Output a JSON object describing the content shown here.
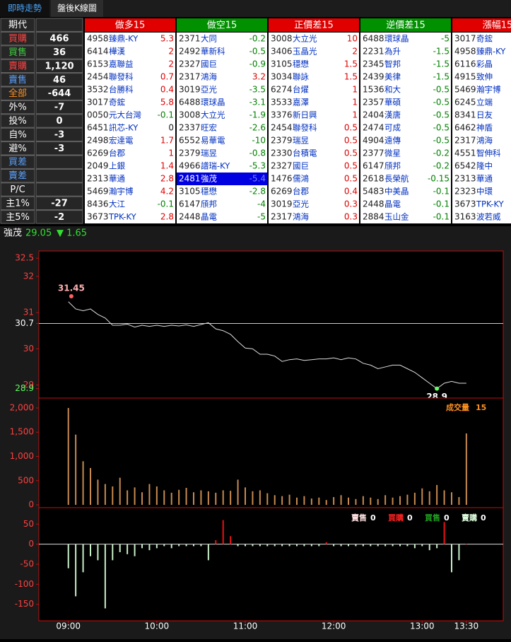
{
  "tabs": [
    "即時走勢",
    "盤後K線圖"
  ],
  "left_panel": [
    {
      "label": "期代",
      "value": "",
      "color": "#ffffff"
    },
    {
      "label": "買購",
      "value": "466",
      "color": "#ff4040"
    },
    {
      "label": "買售",
      "value": "36",
      "color": "#40d040"
    },
    {
      "label": "賣購",
      "value": "1,120",
      "color": "#ff4040"
    },
    {
      "label": "賣售",
      "value": "46",
      "color": "#5aa0ff"
    },
    {
      "label": "全部",
      "value": "-644",
      "color": "#ff9020"
    },
    {
      "label": "外%",
      "value": "-7",
      "color": "#ffffff"
    },
    {
      "label": "投%",
      "value": "0",
      "color": "#ffffff"
    },
    {
      "label": "自%",
      "value": "-3",
      "color": "#ffffff"
    },
    {
      "label": "避%",
      "value": "-3",
      "color": "#ffffff"
    },
    {
      "label": "買差",
      "value": "",
      "color": "#5aa0ff"
    },
    {
      "label": "賣差",
      "value": "",
      "color": "#5aa0ff"
    },
    {
      "label": "P/C",
      "value": "",
      "color": "#ffffff"
    },
    {
      "label": "主1%",
      "value": "-27",
      "color": "#ffffff"
    },
    {
      "label": "主5%",
      "value": "-2",
      "color": "#ffffff"
    }
  ],
  "lists": [
    {
      "title": "做多15",
      "color": "#e00000",
      "rows": [
        [
          "4958",
          "臻鼎-KY",
          "5.3"
        ],
        [
          "6414",
          "樺漢",
          "2"
        ],
        [
          "6153",
          "嘉聯益",
          "2"
        ],
        [
          "2454",
          "聯發科",
          "0.7"
        ],
        [
          "3532",
          "台勝科",
          "0.4"
        ],
        [
          "3017",
          "奇鋐",
          "5.8"
        ],
        [
          "0050",
          "元大台灣",
          "-0.1"
        ],
        [
          "6451",
          "訊芯-KY",
          "0"
        ],
        [
          "2498",
          "宏達電",
          "1.7"
        ],
        [
          "6269",
          "台郡",
          "1"
        ],
        [
          "2049",
          "上銀",
          "1.4"
        ],
        [
          "2313",
          "華通",
          "2.8"
        ],
        [
          "5469",
          "瀚宇博",
          "4.2"
        ],
        [
          "8436",
          "大江",
          "-0.1"
        ],
        [
          "3673",
          "TPK-KY",
          "2.8"
        ]
      ]
    },
    {
      "title": "做空15",
      "color": "#009000",
      "selected_row": 11,
      "rows": [
        [
          "2371",
          "大同",
          "-0.2"
        ],
        [
          "2492",
          "華新科",
          "-0.5"
        ],
        [
          "2327",
          "國巨",
          "-0.9"
        ],
        [
          "2317",
          "鴻海",
          "3.2"
        ],
        [
          "3019",
          "亞光",
          "-3.5"
        ],
        [
          "6488",
          "環球晶",
          "-3.1"
        ],
        [
          "3008",
          "大立光",
          "-1.9"
        ],
        [
          "2337",
          "旺宏",
          "-2.6"
        ],
        [
          "6552",
          "易華電",
          "-10"
        ],
        [
          "2379",
          "瑞昱",
          "-0.8"
        ],
        [
          "4966",
          "譜瑞-KY",
          "-5.3"
        ],
        [
          "2481",
          "強茂",
          "-5.4"
        ],
        [
          "3105",
          "穩懋",
          "-2.8"
        ],
        [
          "6147",
          "頎邦",
          "-4"
        ],
        [
          "2448",
          "晶電",
          "-5"
        ]
      ]
    },
    {
      "title": "正價差15",
      "color": "#e00000",
      "rows": [
        [
          "3008",
          "大立光",
          "10"
        ],
        [
          "3406",
          "玉晶光",
          "2"
        ],
        [
          "3105",
          "穩懋",
          "1.5"
        ],
        [
          "3034",
          "聯詠",
          "1.5"
        ],
        [
          "6274",
          "台燿",
          "1"
        ],
        [
          "3533",
          "嘉澤",
          "1"
        ],
        [
          "3376",
          "新日興",
          "1"
        ],
        [
          "2454",
          "聯發科",
          "0.5"
        ],
        [
          "2379",
          "瑞昱",
          "0.5"
        ],
        [
          "2330",
          "台積電",
          "0.5"
        ],
        [
          "2327",
          "國巨",
          "0.5"
        ],
        [
          "1476",
          "儒鴻",
          "0.5"
        ],
        [
          "6269",
          "台郡",
          "0.4"
        ],
        [
          "3019",
          "亞光",
          "0.3"
        ],
        [
          "2317",
          "鴻海",
          "0.3"
        ]
      ]
    },
    {
      "title": "逆價差15",
      "color": "#009000",
      "rows": [
        [
          "6488",
          "環球晶",
          "-5"
        ],
        [
          "2231",
          "為升",
          "-1.5"
        ],
        [
          "2345",
          "智邦",
          "-1.5"
        ],
        [
          "2439",
          "美律",
          "-1.5"
        ],
        [
          "1536",
          "和大",
          "-0.5"
        ],
        [
          "2357",
          "華碩",
          "-0.5"
        ],
        [
          "2404",
          "漢唐",
          "-0.5"
        ],
        [
          "2474",
          "可成",
          "-0.5"
        ],
        [
          "4904",
          "遠傳",
          "-0.5"
        ],
        [
          "2377",
          "微星",
          "-0.2"
        ],
        [
          "6147",
          "頎邦",
          "-0.2"
        ],
        [
          "2618",
          "長榮航",
          "-0.15"
        ],
        [
          "5483",
          "中美晶",
          "-0.1"
        ],
        [
          "2448",
          "晶電",
          "-0.1"
        ],
        [
          "2884",
          "玉山金",
          "-0.1"
        ]
      ]
    },
    {
      "title": "漲幅15",
      "color": "#e00000",
      "rows": [
        [
          "3017",
          "奇鋐"
        ],
        [
          "4958",
          "臻鼎-KY"
        ],
        [
          "6116",
          "彩晶"
        ],
        [
          "4915",
          "致伸"
        ],
        [
          "5469",
          "瀚宇博"
        ],
        [
          "6245",
          "立端"
        ],
        [
          "8341",
          "日友"
        ],
        [
          "6462",
          "神盾"
        ],
        [
          "2317",
          "鴻海"
        ],
        [
          "4551",
          "智伸科"
        ],
        [
          "6542",
          "隆中"
        ],
        [
          "2313",
          "華通"
        ],
        [
          "2323",
          "中環"
        ],
        [
          "3673",
          "TPK-KY"
        ],
        [
          "3163",
          "波若威"
        ]
      ]
    }
  ],
  "quote": {
    "name": "強茂",
    "price": "29.05",
    "change": "▼ 1.65"
  },
  "chart_data": [
    {
      "type": "line",
      "color": "#dddddd",
      "x": [
        "09:00",
        "09:05",
        "09:10",
        "09:15",
        "09:20",
        "09:25",
        "09:30",
        "09:35",
        "09:40",
        "09:45",
        "09:50",
        "09:55",
        "10:00",
        "10:05",
        "10:10",
        "10:15",
        "10:20",
        "10:25",
        "10:30",
        "10:35",
        "10:40",
        "10:45",
        "10:50",
        "10:55",
        "11:00",
        "11:05",
        "11:10",
        "11:15",
        "11:20",
        "11:25",
        "11:30",
        "11:35",
        "11:40",
        "11:45",
        "11:50",
        "11:55",
        "12:00",
        "12:05",
        "12:10",
        "12:15",
        "12:20",
        "12:25",
        "12:30",
        "12:35",
        "12:40",
        "12:45",
        "12:50",
        "12:55",
        "13:00",
        "13:05",
        "13:10",
        "13:15",
        "13:20",
        "13:25",
        "13:30"
      ],
      "values": [
        31.3,
        31.1,
        31.05,
        31.1,
        30.95,
        30.85,
        30.65,
        30.65,
        30.68,
        30.6,
        30.65,
        30.62,
        30.65,
        30.62,
        30.65,
        30.63,
        30.66,
        30.62,
        30.67,
        30.72,
        30.55,
        30.5,
        30.4,
        30.2,
        30.02,
        30.0,
        29.85,
        29.85,
        29.8,
        29.65,
        29.7,
        29.72,
        29.68,
        29.7,
        29.72,
        29.72,
        29.75,
        29.7,
        29.75,
        29.72,
        29.6,
        29.55,
        29.45,
        29.5,
        29.55,
        29.55,
        29.45,
        29.35,
        29.2,
        29.05,
        28.9,
        29.05,
        29.1,
        29.05,
        29.05
      ],
      "xlim": [
        "08:40",
        "13:55"
      ],
      "ylim": [
        28.64,
        32.7
      ],
      "yticks": [
        32.5,
        32,
        31,
        30.7,
        30,
        29,
        28.9
      ],
      "reference": 30.7,
      "annotations": [
        {
          "x": "09:02",
          "value": 31.45,
          "color": "#ff6060"
        },
        {
          "x": "13:10",
          "value": 28.9,
          "color": "#60ff60"
        }
      ]
    },
    {
      "type": "bar",
      "color": "#c88a50",
      "x": [
        "09:00",
        "09:05",
        "09:10",
        "09:15",
        "09:20",
        "09:25",
        "09:30",
        "09:35",
        "09:40",
        "09:45",
        "09:50",
        "09:55",
        "10:00",
        "10:05",
        "10:10",
        "10:15",
        "10:20",
        "10:25",
        "10:30",
        "10:35",
        "10:40",
        "10:45",
        "10:50",
        "10:55",
        "11:00",
        "11:05",
        "11:10",
        "11:15",
        "11:20",
        "11:25",
        "11:30",
        "11:35",
        "11:40",
        "11:45",
        "11:50",
        "11:55",
        "12:00",
        "12:05",
        "12:10",
        "12:15",
        "12:20",
        "12:25",
        "12:30",
        "12:35",
        "12:40",
        "12:45",
        "12:50",
        "12:55",
        "13:00",
        "13:05",
        "13:10",
        "13:15",
        "13:20",
        "13:25",
        "13:30"
      ],
      "values": [
        2000,
        1450,
        900,
        760,
        520,
        430,
        380,
        560,
        300,
        360,
        260,
        430,
        380,
        300,
        250,
        310,
        350,
        260,
        300,
        280,
        250,
        300,
        290,
        520,
        360,
        280,
        300,
        240,
        200,
        180,
        210,
        150,
        180,
        130,
        150,
        100,
        160,
        200,
        150,
        120,
        180,
        150,
        120,
        200,
        150,
        180,
        210,
        250,
        340,
        280,
        410,
        300,
        260,
        160,
        1474
      ],
      "xlim": [
        "08:40",
        "13:55"
      ],
      "ylim": [
        -58,
        2204
      ],
      "yticks": [
        0,
        500,
        {
          "value": 1000,
          "label": "1,000"
        },
        {
          "value": 1500,
          "label": "1,500"
        },
        {
          "value": 2000,
          "label": "2,000"
        }
      ],
      "legend": {
        "name": "成交量",
        "value": "15",
        "color": "#ff9020"
      }
    },
    {
      "type": "bar",
      "positive_color": "#ee1010",
      "negative_color": "#c8f0c8",
      "x": [
        "09:00",
        "09:05",
        "09:10",
        "09:15",
        "09:20",
        "09:25",
        "09:30",
        "09:35",
        "09:40",
        "09:45",
        "09:50",
        "09:55",
        "10:00",
        "10:05",
        "10:10",
        "10:15",
        "10:20",
        "10:25",
        "10:30",
        "10:35",
        "10:40",
        "10:45",
        "10:50",
        "10:55",
        "11:00",
        "11:05",
        "11:10",
        "11:15",
        "11:20",
        "11:25",
        "11:30",
        "11:35",
        "11:40",
        "11:45",
        "11:50",
        "11:55",
        "12:00",
        "12:05",
        "12:10",
        "12:15",
        "12:20",
        "12:25",
        "12:30",
        "12:35",
        "12:40",
        "12:45",
        "12:50",
        "12:55",
        "13:00",
        "13:05",
        "13:10",
        "13:15",
        "13:20",
        "13:25",
        "13:30"
      ],
      "values": [
        -60,
        -130,
        -70,
        -30,
        -40,
        -160,
        -40,
        -20,
        -25,
        -30,
        -10,
        -15,
        -10,
        -5,
        -10,
        -5,
        -5,
        -5,
        -5,
        -40,
        10,
        60,
        20,
        -5,
        -5,
        -5,
        -5,
        -5,
        -5,
        -5,
        -5,
        -5,
        -5,
        -5,
        -5,
        5,
        -5,
        -5,
        -5,
        -5,
        -5,
        -5,
        -5,
        -5,
        -5,
        -5,
        -5,
        -10,
        -5,
        -15,
        -10,
        55,
        -70,
        -40,
        0
      ],
      "xlim": [
        "08:40",
        "13:55"
      ],
      "ylim": [
        -191,
        91
      ],
      "yticks": [
        50,
        0,
        -50,
        -100,
        -150
      ],
      "xticks": [
        "09:00",
        "10:00",
        "11:00",
        "12:00",
        "13:00",
        "13:30"
      ],
      "legend": [
        {
          "name": "賣售",
          "value": "0",
          "color": "#ffe0e0"
        },
        {
          "name": "買購",
          "value": "0",
          "color": "#ff2020"
        },
        {
          "name": "買售",
          "value": "0",
          "color": "#20a020"
        },
        {
          "name": "賣購",
          "value": "0",
          "color": "#e0ffe0"
        }
      ]
    }
  ]
}
